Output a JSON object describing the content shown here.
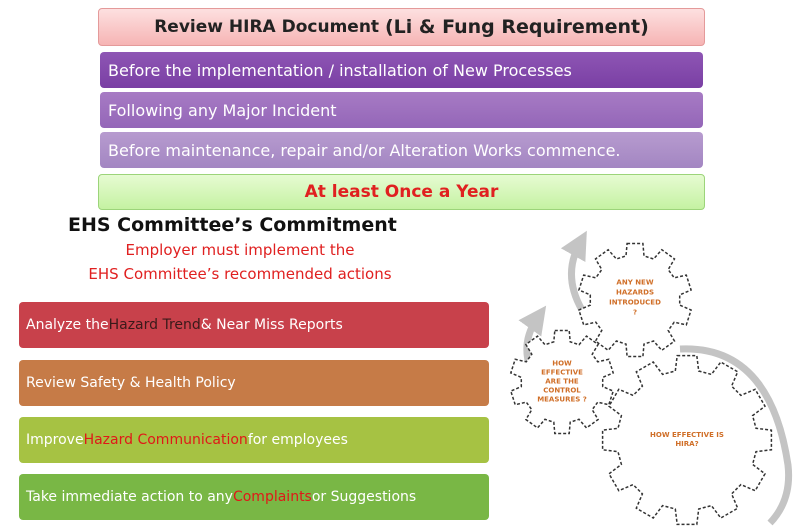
{
  "review": {
    "title_main": "Review HIRA Document",
    "title_paren": "(Li & Fung Requirement)",
    "items": [
      "Before the implementation / installation of New Processes",
      "Following any Major Incident",
      "Before maintenance, repair and/or Alteration Works commence."
    ],
    "frequency": "At least Once a Year"
  },
  "ehs": {
    "title": "EHS Committee’s Commitment",
    "subtitle_line1": "Employer must implement the",
    "subtitle_line2": "EHS Committee’s recommended actions",
    "actions": [
      {
        "parts": [
          "Analyze the ",
          "Hazard Trend",
          " & Near Miss Reports"
        ]
      },
      {
        "parts": [
          "Review Safety & Health Policy"
        ]
      },
      {
        "parts": [
          "Improve ",
          "Hazard Communication",
          " for employees"
        ]
      },
      {
        "parts": [
          "Take immediate action to any ",
          "Complaints",
          " or Suggestions"
        ]
      }
    ],
    "colors": {
      "action1": "#c8414b",
      "action2": "#c67b47",
      "action3": "#a6c243",
      "action4": "#79b745",
      "highlight": "#e01818"
    }
  },
  "gears": {
    "top": [
      "ANY NEW",
      "HAZARDS",
      "INTRODUCED",
      "?"
    ],
    "left": [
      "HOW",
      "EFFECTIVE",
      "ARE THE",
      "CONTROL",
      "MEASURES ?"
    ],
    "right": [
      "HOW EFFECTIVE IS",
      "HIRA?"
    ],
    "label_color": "#d06f28"
  }
}
